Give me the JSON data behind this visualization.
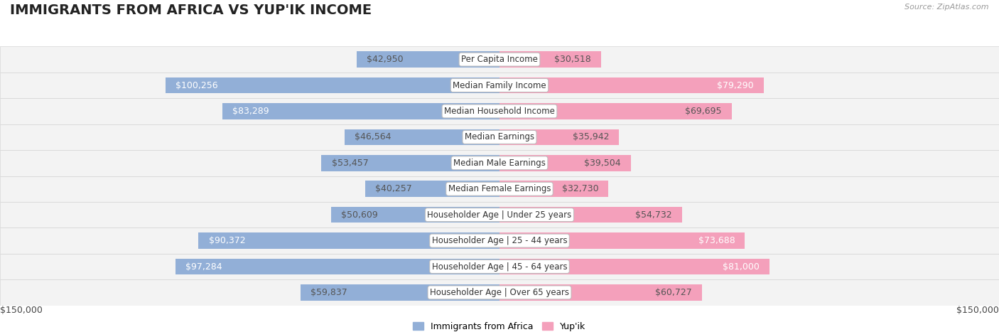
{
  "title": "IMMIGRANTS FROM AFRICA VS YUP'IK INCOME",
  "source": "Source: ZipAtlas.com",
  "categories": [
    "Per Capita Income",
    "Median Family Income",
    "Median Household Income",
    "Median Earnings",
    "Median Male Earnings",
    "Median Female Earnings",
    "Householder Age | Under 25 years",
    "Householder Age | 25 - 44 years",
    "Householder Age | 45 - 64 years",
    "Householder Age | Over 65 years"
  ],
  "africa_values": [
    42950,
    100256,
    83289,
    46564,
    53457,
    40257,
    50609,
    90372,
    97284,
    59837
  ],
  "yupik_values": [
    30518,
    79290,
    69695,
    35942,
    39504,
    32730,
    54732,
    73688,
    81000,
    60727
  ],
  "africa_labels": [
    "$42,950",
    "$100,256",
    "$83,289",
    "$46,564",
    "$53,457",
    "$40,257",
    "$50,609",
    "$90,372",
    "$97,284",
    "$59,837"
  ],
  "yupik_labels": [
    "$30,518",
    "$79,290",
    "$69,695",
    "$35,942",
    "$39,504",
    "$32,730",
    "$54,732",
    "$73,688",
    "$81,000",
    "$60,727"
  ],
  "africa_color": "#92afd7",
  "yupik_color": "#f4a0bb",
  "africa_inside_color": "#5b7fc4",
  "yupik_inside_color": "#e8527a",
  "max_value": 150000,
  "bg_color": "#ffffff",
  "legend_africa": "Immigrants from Africa",
  "legend_yupik": "Yup'ik",
  "xlabel_left": "$150,000",
  "xlabel_right": "$150,000",
  "title_fontsize": 14,
  "label_fontsize": 9,
  "cat_fontsize": 8.5,
  "inside_threshold_africa": 70000,
  "inside_threshold_yupik": 70000
}
